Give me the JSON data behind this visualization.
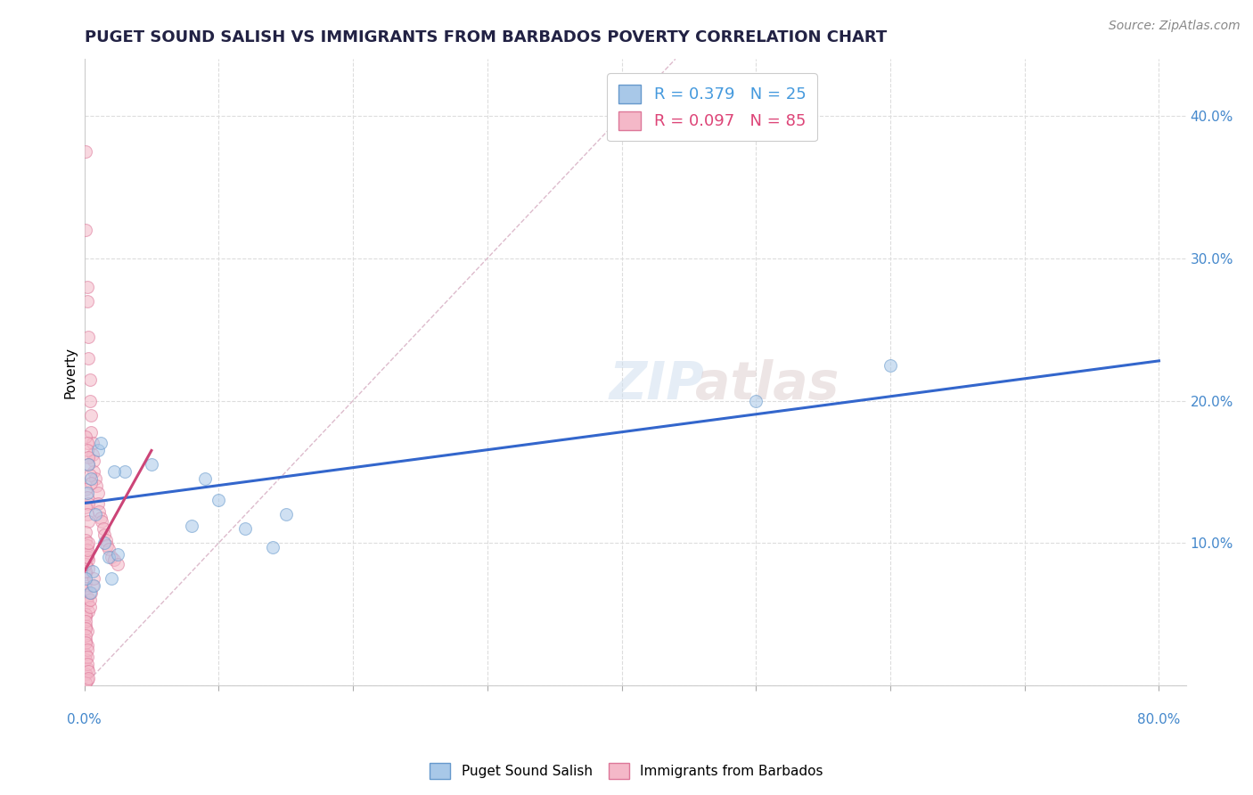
{
  "title": "PUGET SOUND SALISH VS IMMIGRANTS FROM BARBADOS POVERTY CORRELATION CHART",
  "source": "Source: ZipAtlas.com",
  "ylabel": "Poverty",
  "xlim": [
    0.0,
    0.82
  ],
  "ylim": [
    0.0,
    0.44
  ],
  "yticks": [
    0.0,
    0.1,
    0.2,
    0.3,
    0.4
  ],
  "ytick_labels": [
    "",
    "10.0%",
    "20.0%",
    "30.0%",
    "40.0%"
  ],
  "xtick_positions": [
    0.0,
    0.1,
    0.2,
    0.3,
    0.4,
    0.5,
    0.6,
    0.7,
    0.8
  ],
  "blue_scatter_x": [
    0.002,
    0.003,
    0.004,
    0.005,
    0.006,
    0.007,
    0.008,
    0.01,
    0.012,
    0.015,
    0.018,
    0.02,
    0.025,
    0.03,
    0.05,
    0.08,
    0.09,
    0.1,
    0.12,
    0.14,
    0.15,
    0.5,
    0.6,
    0.001,
    0.022
  ],
  "blue_scatter_y": [
    0.135,
    0.155,
    0.065,
    0.145,
    0.08,
    0.07,
    0.12,
    0.165,
    0.17,
    0.1,
    0.09,
    0.075,
    0.092,
    0.15,
    0.155,
    0.112,
    0.145,
    0.13,
    0.11,
    0.097,
    0.12,
    0.2,
    0.225,
    0.075,
    0.15
  ],
  "pink_scatter_x": [
    0.001,
    0.001,
    0.002,
    0.002,
    0.003,
    0.003,
    0.004,
    0.004,
    0.005,
    0.005,
    0.006,
    0.006,
    0.007,
    0.007,
    0.008,
    0.009,
    0.01,
    0.01,
    0.011,
    0.012,
    0.013,
    0.014,
    0.015,
    0.016,
    0.017,
    0.018,
    0.02,
    0.022,
    0.025,
    0.001,
    0.002,
    0.002,
    0.003,
    0.003,
    0.004,
    0.005,
    0.001,
    0.002,
    0.003,
    0.001,
    0.002,
    0.003,
    0.001,
    0.001,
    0.002,
    0.002,
    0.003,
    0.003,
    0.001,
    0.001,
    0.001,
    0.002,
    0.002,
    0.003,
    0.001,
    0.001,
    0.002,
    0.001,
    0.002,
    0.001,
    0.001,
    0.002,
    0.001,
    0.002,
    0.001,
    0.001,
    0.001,
    0.001,
    0.001,
    0.001,
    0.002,
    0.002,
    0.002,
    0.003,
    0.003,
    0.004,
    0.004,
    0.005,
    0.006,
    0.007,
    0.001,
    0.001,
    0.002,
    0.002,
    0.003
  ],
  "pink_scatter_y": [
    0.375,
    0.32,
    0.28,
    0.27,
    0.245,
    0.23,
    0.215,
    0.2,
    0.19,
    0.178,
    0.17,
    0.162,
    0.158,
    0.15,
    0.145,
    0.14,
    0.135,
    0.128,
    0.122,
    0.118,
    0.115,
    0.11,
    0.106,
    0.102,
    0.098,
    0.096,
    0.09,
    0.088,
    0.085,
    0.175,
    0.17,
    0.165,
    0.16,
    0.155,
    0.148,
    0.142,
    0.138,
    0.132,
    0.128,
    0.125,
    0.12,
    0.115,
    0.108,
    0.102,
    0.098,
    0.092,
    0.088,
    0.082,
    0.078,
    0.072,
    0.068,
    0.062,
    0.058,
    0.052,
    0.048,
    0.042,
    0.038,
    0.032,
    0.028,
    0.022,
    0.018,
    0.012,
    0.008,
    0.004,
    0.002,
    0.05,
    0.045,
    0.04,
    0.035,
    0.03,
    0.025,
    0.02,
    0.015,
    0.01,
    0.005,
    0.055,
    0.06,
    0.065,
    0.07,
    0.075,
    0.08,
    0.085,
    0.09,
    0.095,
    0.1
  ],
  "blue_line_x": [
    0.0,
    0.8
  ],
  "blue_line_y": [
    0.128,
    0.228
  ],
  "pink_line_x": [
    0.0,
    0.05
  ],
  "pink_line_y": [
    0.08,
    0.165
  ],
  "diag_line_x": [
    0.0,
    0.44
  ],
  "diag_line_y": [
    0.0,
    0.44
  ],
  "blue_color": "#a8c8e8",
  "blue_edge_color": "#6699cc",
  "pink_color": "#f4b8c8",
  "pink_edge_color": "#dd7799",
  "blue_line_color": "#3366cc",
  "pink_line_color": "#cc4477",
  "diag_color": "#ddbbcc",
  "grid_color": "#dddddd",
  "background_color": "#ffffff",
  "scatter_size": 100,
  "scatter_alpha": 0.55,
  "scatter_lw": 0.8,
  "title_fontsize": 13,
  "ylabel_fontsize": 11,
  "tick_fontsize": 11,
  "source_fontsize": 10,
  "legend_blue_label": "R = 0.379   N = 25",
  "legend_pink_label": "R = 0.097   N = 85",
  "legend_blue_color": "#4499dd",
  "legend_pink_color": "#dd4477",
  "bottom_legend_blue": "Puget Sound Salish",
  "bottom_legend_pink": "Immigrants from Barbados"
}
